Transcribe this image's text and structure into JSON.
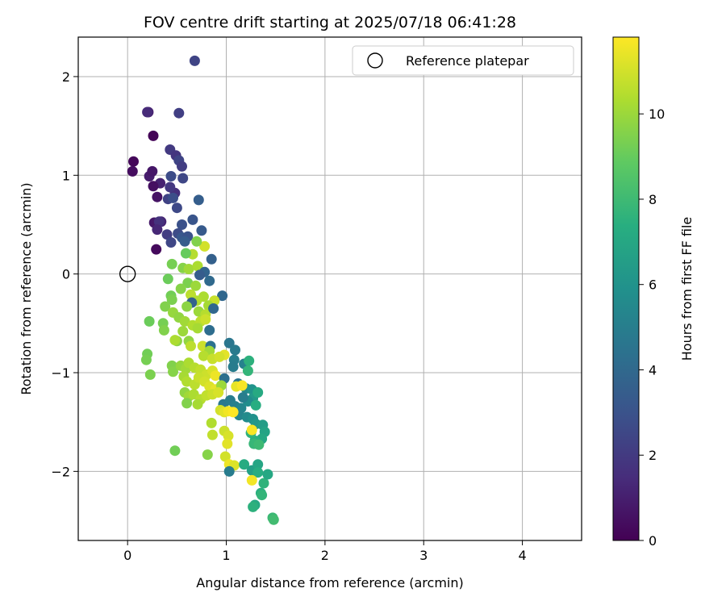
{
  "chart_data": {
    "type": "scatter",
    "title": "FOV centre drift starting at 2025/07/18 06:41:28",
    "xlabel": "Angular distance from reference (arcmin)",
    "ylabel": "Rotation from reference (arcmin)",
    "xlim": [
      -0.5,
      4.6
    ],
    "ylim": [
      -2.7,
      2.4
    ],
    "xticks": [
      0,
      1,
      2,
      3,
      4
    ],
    "yticks": [
      -2,
      -1,
      0,
      1,
      2
    ],
    "grid": true,
    "colormap": "viridis",
    "colorbar": {
      "label": "Hours from first FF file",
      "range": [
        0,
        11.8
      ],
      "ticks": [
        0,
        2,
        4,
        6,
        8,
        10
      ]
    },
    "legend": {
      "position": "top-right",
      "entries": [
        {
          "label": "Reference platepar",
          "marker": "open-circle",
          "x": 0,
          "y": 0
        }
      ]
    },
    "points": [
      [
        0.68,
        2.16,
        2.4
      ],
      [
        0.21,
        1.64,
        1.0
      ],
      [
        0.2,
        1.64,
        1.4
      ],
      [
        0.52,
        1.63,
        2.2
      ],
      [
        0.26,
        1.4,
        0.1
      ],
      [
        0.06,
        1.14,
        0.2
      ],
      [
        0.05,
        1.04,
        0.4
      ],
      [
        0.22,
        0.99,
        0.9
      ],
      [
        0.25,
        1.04,
        0.7
      ],
      [
        0.33,
        0.92,
        1.1
      ],
      [
        0.26,
        0.89,
        0.5
      ],
      [
        0.3,
        0.78,
        0.6
      ],
      [
        0.43,
        1.26,
        2.0
      ],
      [
        0.49,
        1.2,
        1.8
      ],
      [
        0.52,
        1.15,
        2.4
      ],
      [
        0.55,
        1.09,
        2.1
      ],
      [
        0.56,
        0.97,
        2.5
      ],
      [
        0.44,
        0.99,
        2.7
      ],
      [
        0.48,
        0.82,
        1.6
      ],
      [
        0.43,
        0.88,
        1.9
      ],
      [
        0.41,
        0.76,
        2.3
      ],
      [
        0.46,
        0.77,
        2.8
      ],
      [
        0.5,
        0.67,
        2.6
      ],
      [
        0.72,
        0.75,
        3.5
      ],
      [
        0.27,
        0.52,
        0.8
      ],
      [
        0.34,
        0.53,
        1.2
      ],
      [
        0.32,
        0.53,
        1.7
      ],
      [
        0.3,
        0.45,
        1.3
      ],
      [
        0.4,
        0.4,
        2.1
      ],
      [
        0.44,
        0.32,
        2.5
      ],
      [
        0.29,
        0.25,
        0.3
      ],
      [
        0.55,
        0.5,
        2.9
      ],
      [
        0.66,
        0.55,
        3.1
      ],
      [
        0.75,
        0.44,
        3.3
      ],
      [
        0.51,
        0.41,
        2.7
      ],
      [
        0.55,
        0.37,
        3.2
      ],
      [
        0.61,
        0.38,
        3.0
      ],
      [
        0.58,
        0.33,
        3.4
      ],
      [
        0.78,
        0.28,
        11.0
      ],
      [
        0.7,
        0.33,
        9.5
      ],
      [
        0.66,
        0.2,
        10.5
      ],
      [
        0.85,
        0.15,
        3.6
      ],
      [
        0.59,
        0.21,
        9.0
      ],
      [
        0.45,
        0.1,
        9.3
      ],
      [
        0.56,
        0.06,
        9.6
      ],
      [
        0.62,
        0.05,
        10.1
      ],
      [
        0.71,
        0.08,
        10.3
      ],
      [
        0.78,
        0.02,
        3.8
      ],
      [
        0.83,
        -0.07,
        4.0
      ],
      [
        0.73,
        -0.01,
        3.4
      ],
      [
        0.61,
        -0.09,
        9.4
      ],
      [
        0.69,
        -0.12,
        10.0
      ],
      [
        0.96,
        -0.22,
        3.9
      ],
      [
        0.41,
        -0.05,
        9.1
      ],
      [
        0.54,
        -0.15,
        9.6
      ],
      [
        0.64,
        -0.21,
        10.6
      ],
      [
        0.77,
        -0.23,
        10.3
      ],
      [
        0.88,
        -0.27,
        10.8
      ],
      [
        0.82,
        -0.32,
        10.2
      ],
      [
        0.7,
        -0.27,
        10.4
      ],
      [
        0.65,
        -0.29,
        3.7
      ],
      [
        0.6,
        -0.33,
        9.7
      ],
      [
        0.72,
        -0.38,
        10.0
      ],
      [
        0.79,
        -0.41,
        10.5
      ],
      [
        0.87,
        -0.35,
        3.9
      ],
      [
        0.44,
        -0.22,
        9.2
      ],
      [
        0.45,
        -0.26,
        9.4
      ],
      [
        0.38,
        -0.33,
        9.5
      ],
      [
        0.46,
        -0.39,
        9.9
      ],
      [
        0.52,
        -0.44,
        9.8
      ],
      [
        0.58,
        -0.48,
        10.1
      ],
      [
        0.66,
        -0.52,
        10.4
      ],
      [
        0.74,
        -0.48,
        10.6
      ],
      [
        0.79,
        -0.46,
        10.9
      ],
      [
        0.83,
        -0.57,
        4.2
      ],
      [
        0.71,
        -0.55,
        10.2
      ],
      [
        0.22,
        -0.48,
        9.1
      ],
      [
        0.36,
        -0.5,
        9.3
      ],
      [
        0.37,
        -0.57,
        9.5
      ],
      [
        0.5,
        -0.68,
        9.7
      ],
      [
        0.56,
        -0.58,
        10.0
      ],
      [
        0.48,
        -0.67,
        10.3
      ],
      [
        0.62,
        -0.68,
        9.8
      ],
      [
        0.64,
        -0.73,
        10.6
      ],
      [
        0.76,
        -0.73,
        10.9
      ],
      [
        0.84,
        -0.73,
        4.4
      ],
      [
        0.83,
        -0.78,
        10.1
      ],
      [
        0.77,
        -0.83,
        10.5
      ],
      [
        0.86,
        -0.86,
        10.8
      ],
      [
        0.98,
        -0.82,
        11.3
      ],
      [
        0.93,
        -0.84,
        11.0
      ],
      [
        1.03,
        -0.7,
        4.6
      ],
      [
        1.09,
        -0.77,
        4.8
      ],
      [
        1.08,
        -0.87,
        5.0
      ],
      [
        1.18,
        -0.91,
        5.2
      ],
      [
        1.07,
        -0.94,
        4.9
      ],
      [
        1.23,
        -0.88,
        7.5
      ],
      [
        1.22,
        -0.98,
        7.7
      ],
      [
        0.2,
        -0.81,
        9.2
      ],
      [
        0.19,
        -0.87,
        9.3
      ],
      [
        0.23,
        -1.02,
        9.4
      ],
      [
        0.45,
        -0.93,
        9.5
      ],
      [
        0.46,
        -0.99,
        9.6
      ],
      [
        0.54,
        -0.93,
        9.9
      ],
      [
        0.59,
        -0.96,
        10.1
      ],
      [
        0.62,
        -0.9,
        10.3
      ],
      [
        0.68,
        -0.95,
        10.5
      ],
      [
        0.74,
        -0.97,
        10.7
      ],
      [
        0.8,
        -1.02,
        10.9
      ],
      [
        0.86,
        -0.98,
        11.1
      ],
      [
        0.89,
        -1.03,
        11.5
      ],
      [
        0.98,
        -1.06,
        4.3
      ],
      [
        1.12,
        -1.11,
        4.5
      ],
      [
        1.2,
        -1.16,
        5.5
      ],
      [
        1.26,
        -1.17,
        6.0
      ],
      [
        1.27,
        -1.26,
        6.3
      ],
      [
        0.57,
        -1.04,
        10.2
      ],
      [
        0.6,
        -1.09,
        10.4
      ],
      [
        0.68,
        -1.12,
        10.6
      ],
      [
        0.72,
        -1.05,
        10.8
      ],
      [
        0.78,
        -1.09,
        11.0
      ],
      [
        0.83,
        -1.14,
        11.2
      ],
      [
        0.89,
        -1.17,
        11.4
      ],
      [
        0.95,
        -1.13,
        10.0
      ],
      [
        0.58,
        -1.2,
        9.8
      ],
      [
        0.62,
        -1.24,
        10.1
      ],
      [
        0.67,
        -1.22,
        10.3
      ],
      [
        0.74,
        -1.27,
        10.5
      ],
      [
        0.8,
        -1.23,
        10.7
      ],
      [
        0.86,
        -1.22,
        10.9
      ],
      [
        0.92,
        -1.2,
        11.1
      ],
      [
        0.97,
        -1.32,
        4.7
      ],
      [
        1.04,
        -1.28,
        4.9
      ],
      [
        1.09,
        -1.34,
        5.1
      ],
      [
        1.15,
        -1.36,
        5.4
      ],
      [
        1.22,
        -1.29,
        5.7
      ],
      [
        1.3,
        -1.33,
        7.3
      ],
      [
        1.32,
        -1.2,
        7.1
      ],
      [
        1.17,
        -1.25,
        5.0
      ],
      [
        1.13,
        -1.43,
        5.3
      ],
      [
        0.6,
        -1.31,
        9.5
      ],
      [
        0.71,
        -1.32,
        10.2
      ],
      [
        0.94,
        -1.38,
        11.0
      ],
      [
        0.98,
        -1.4,
        11.3
      ],
      [
        1.02,
        -1.39,
        11.6
      ],
      [
        1.07,
        -1.4,
        11.8
      ],
      [
        1.1,
        -1.14,
        11.4
      ],
      [
        1.16,
        -1.13,
        11.7
      ],
      [
        1.21,
        -1.45,
        5.6
      ],
      [
        1.27,
        -1.47,
        5.9
      ],
      [
        1.3,
        -1.52,
        6.2
      ],
      [
        1.37,
        -1.53,
        6.5
      ],
      [
        1.39,
        -1.6,
        6.8
      ],
      [
        1.36,
        -1.67,
        7.0
      ],
      [
        1.29,
        -1.69,
        7.4
      ],
      [
        1.25,
        -1.61,
        7.6
      ],
      [
        0.85,
        -1.51,
        10.4
      ],
      [
        0.98,
        -1.59,
        10.9
      ],
      [
        1.02,
        -1.64,
        11.1
      ],
      [
        1.26,
        -1.58,
        11.7
      ],
      [
        0.86,
        -1.63,
        10.7
      ],
      [
        1.01,
        -1.72,
        11.3
      ],
      [
        1.28,
        -1.72,
        7.8
      ],
      [
        1.33,
        -1.73,
        8.0
      ],
      [
        0.48,
        -1.79,
        9.2
      ],
      [
        0.81,
        -1.83,
        9.6
      ],
      [
        0.99,
        -1.85,
        11.0
      ],
      [
        1.03,
        -1.93,
        11.5
      ],
      [
        1.08,
        -1.94,
        11.2
      ],
      [
        1.18,
        -1.93,
        7.2
      ],
      [
        1.26,
        -1.99,
        6.6
      ],
      [
        1.32,
        -1.93,
        6.9
      ],
      [
        1.32,
        -2.01,
        7.3
      ],
      [
        1.26,
        -2.09,
        11.6
      ],
      [
        1.03,
        -2.0,
        4.9
      ],
      [
        1.38,
        -2.12,
        7.6
      ],
      [
        1.42,
        -2.03,
        7.0
      ],
      [
        1.35,
        -2.22,
        7.4
      ],
      [
        1.36,
        -2.24,
        7.7
      ],
      [
        1.29,
        -2.34,
        7.1
      ],
      [
        1.27,
        -2.36,
        7.5
      ],
      [
        1.47,
        -2.47,
        7.9
      ],
      [
        1.48,
        -2.49,
        8.1
      ]
    ]
  }
}
